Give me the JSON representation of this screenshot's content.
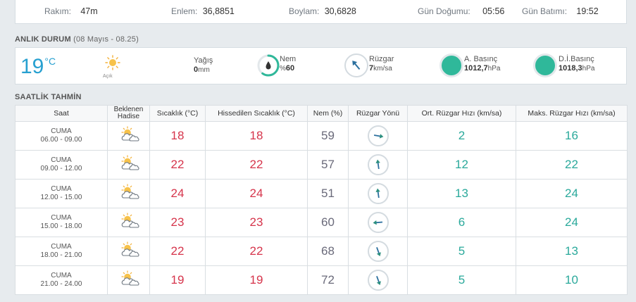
{
  "info": {
    "altitude_label": "Rakım:",
    "altitude_value": "47m",
    "lat_label": "Enlem:",
    "lat_value": "36,8851",
    "lon_label": "Boylam:",
    "lon_value": "30,6828",
    "sunrise_label": "Gün Doğumu:",
    "sunrise_value": "05:56",
    "sunset_label": "Gün Batımı:",
    "sunset_value": "19:52"
  },
  "current": {
    "title": "ANLIK DURUM",
    "subtitle": "(08 Mayıs - 08.25)",
    "temperature": "19",
    "unit": "°C",
    "condition": "Açık",
    "rain_label": "Yağış",
    "rain_value": "0",
    "rain_unit": "mm",
    "humidity_label": "Nem",
    "humidity_prefix": "%",
    "humidity_value": "60",
    "humidity_level": 0.6,
    "wind_label": "Rüzgar",
    "wind_value": "7",
    "wind_unit": "km/sa",
    "pressure_label": "A. Basınç",
    "pressure_value": "1012,7",
    "pressure_unit": "hPa",
    "sea_pressure_label": "D.İ.Basınç",
    "sea_pressure_value": "1018,3",
    "sea_pressure_unit": "hPa",
    "icon_color": "#2fb89a"
  },
  "forecast": {
    "title": "SAATLİK TAHMİN",
    "headers": {
      "time": "Saat",
      "event_1": "Beklenen",
      "event_2": "Hadise",
      "temp": "Sıcaklık (°C)",
      "feels": "Hissedilen Sıcaklık (°C)",
      "humidity": "Nem (%)",
      "wind_dir": "Rüzgar Yönü",
      "avg_wind": "Ort. Rüzgar Hızı (km/sa)",
      "max_wind": "Maks. Rüzgar Hızı (km/sa)"
    },
    "rows": [
      {
        "day": "CUMA",
        "range": "06.00 - 09.00",
        "temp": "18",
        "feels": "18",
        "humidity": "59",
        "wind_dir": "right",
        "avg": "2",
        "max": "16"
      },
      {
        "day": "CUMA",
        "range": "09.00 - 12.00",
        "temp": "22",
        "feels": "22",
        "humidity": "57",
        "wind_dir": "up",
        "avg": "12",
        "max": "22"
      },
      {
        "day": "CUMA",
        "range": "12.00 - 15.00",
        "temp": "24",
        "feels": "24",
        "humidity": "51",
        "wind_dir": "up",
        "avg": "13",
        "max": "24"
      },
      {
        "day": "CUMA",
        "range": "15.00 - 18.00",
        "temp": "23",
        "feels": "23",
        "humidity": "60",
        "wind_dir": "left",
        "avg": "6",
        "max": "24"
      },
      {
        "day": "CUMA",
        "range": "18.00 - 21.00",
        "temp": "22",
        "feels": "22",
        "humidity": "68",
        "wind_dir": "down",
        "avg": "5",
        "max": "13"
      },
      {
        "day": "CUMA",
        "range": "21.00 - 24.00",
        "temp": "19",
        "feels": "19",
        "humidity": "72",
        "wind_dir": "down",
        "avg": "5",
        "max": "10"
      }
    ]
  }
}
